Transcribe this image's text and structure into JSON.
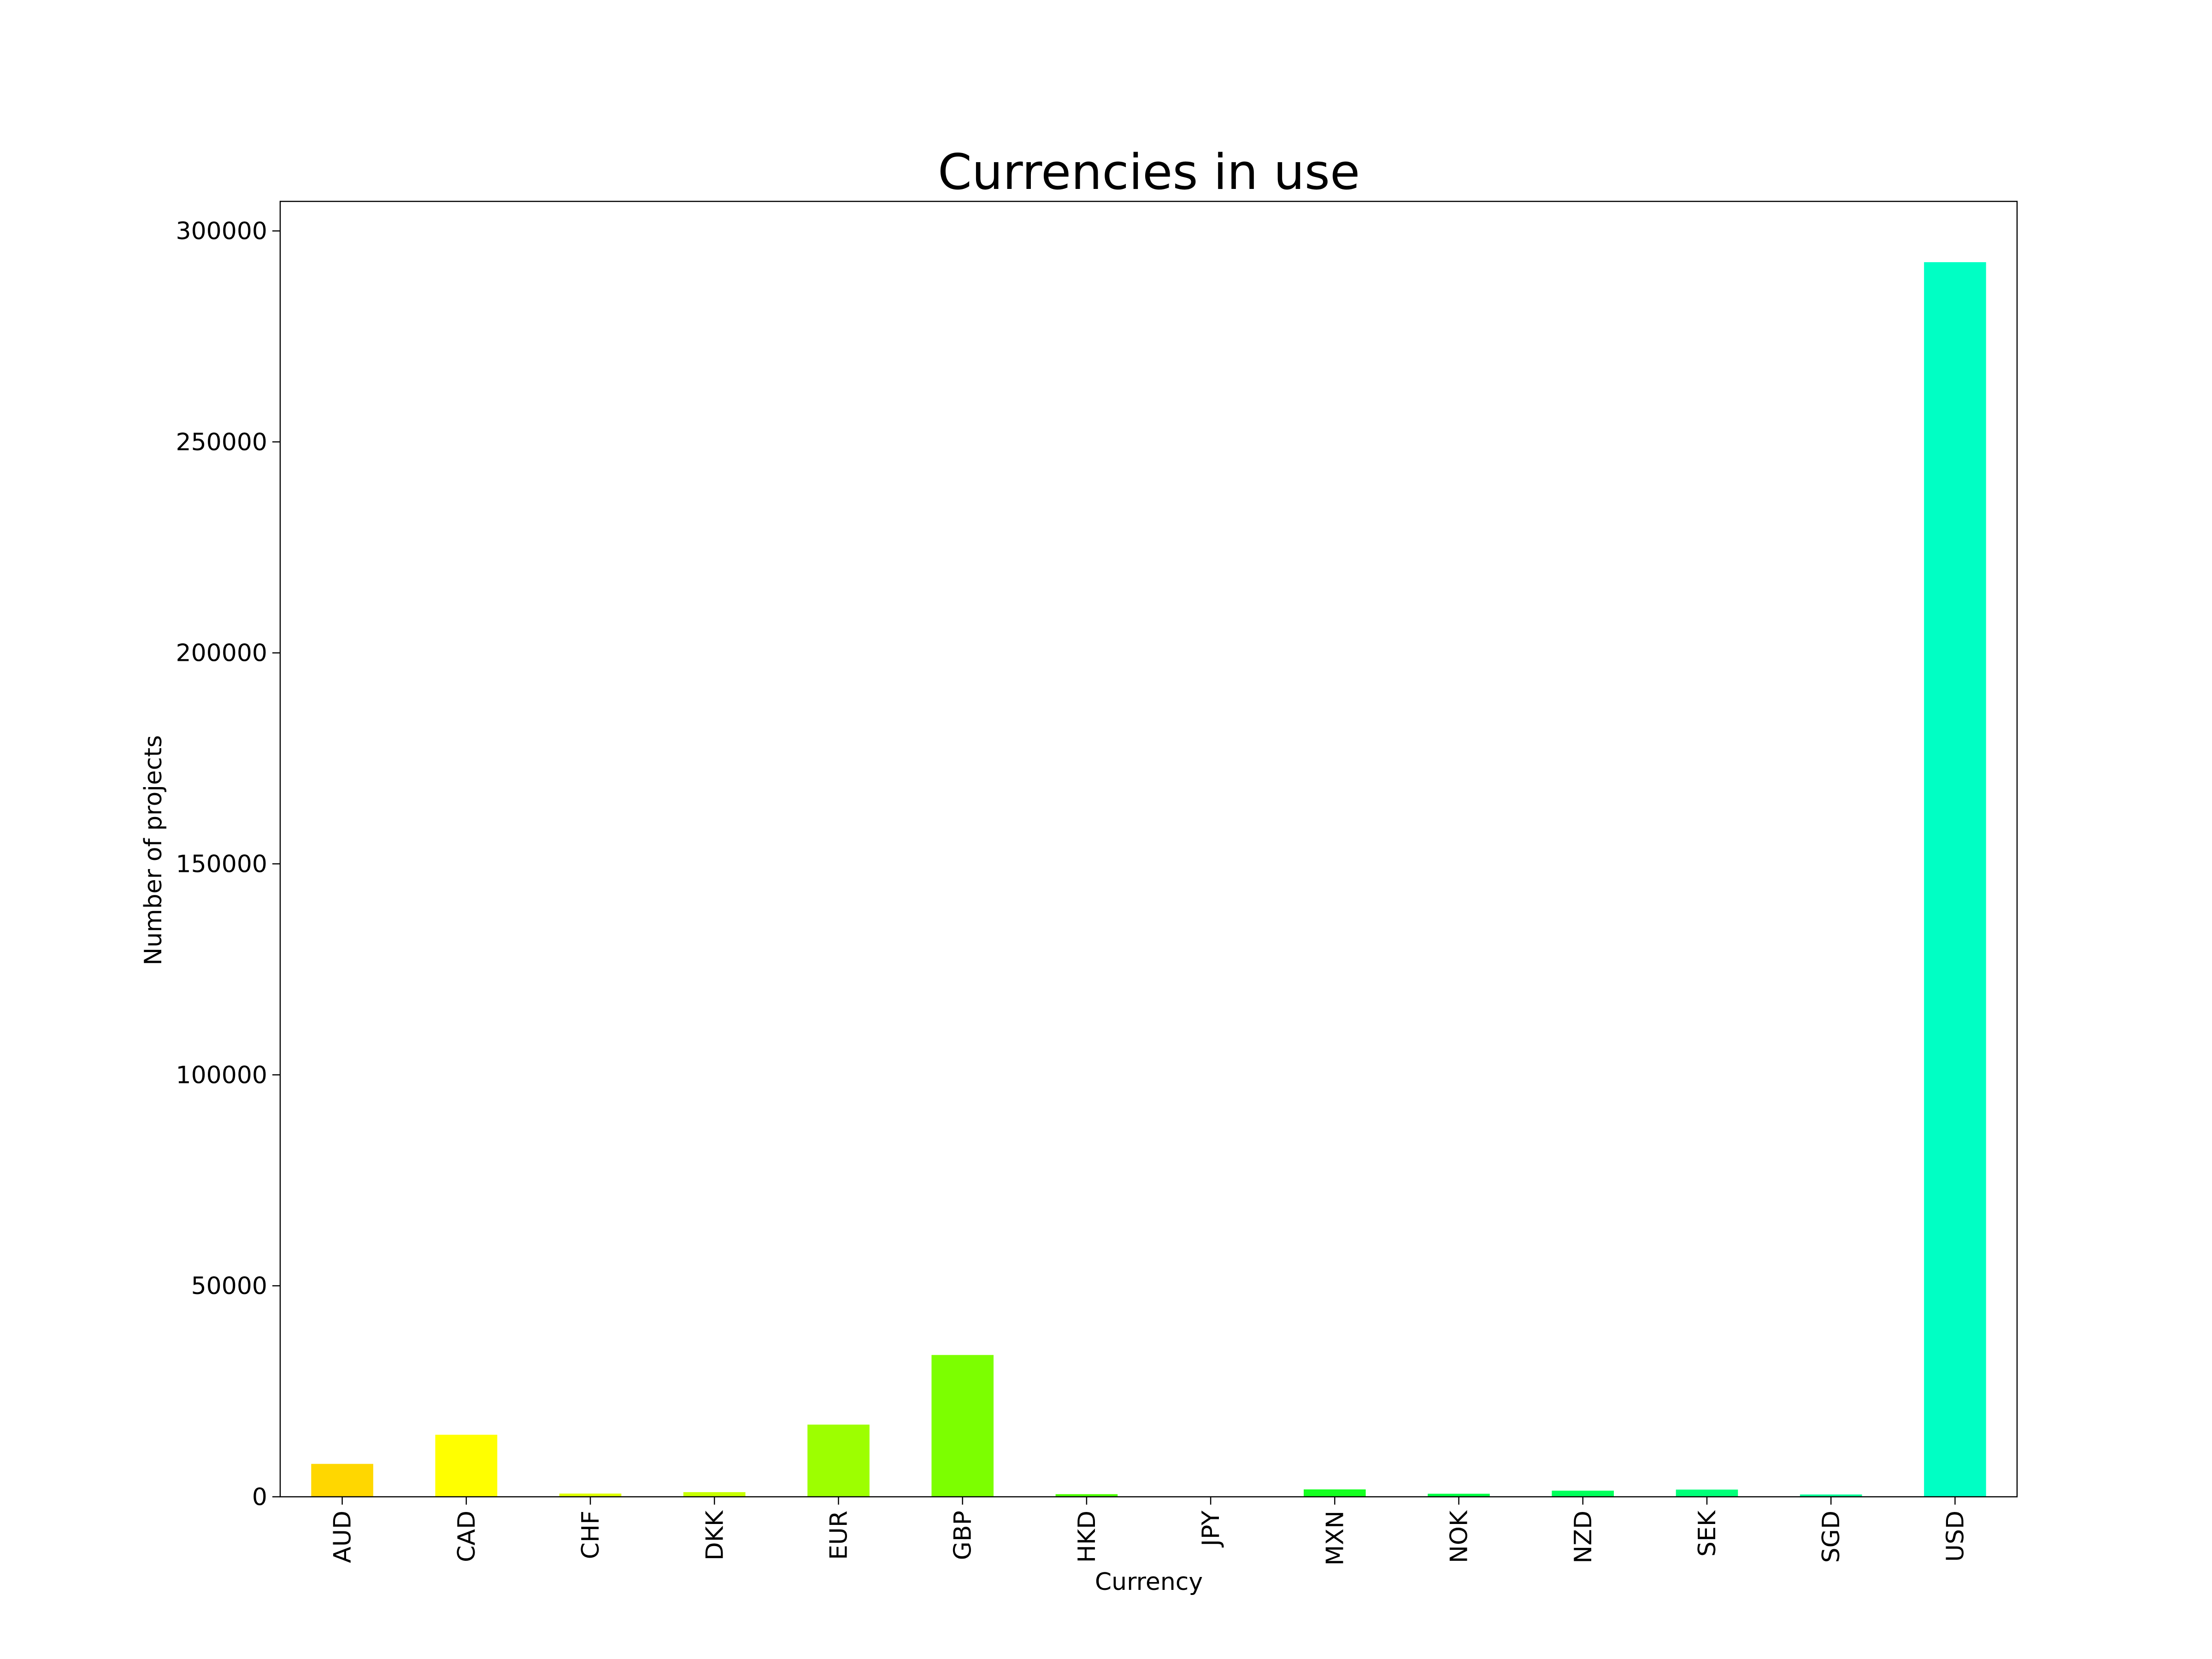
{
  "chart_data": {
    "type": "bar",
    "title": "Currencies in use",
    "xlabel": "Currency",
    "ylabel": "Number of projects",
    "categories": [
      "AUD",
      "CAD",
      "CHF",
      "DKK",
      "EUR",
      "GBP",
      "HKD",
      "JPY",
      "MXN",
      "NOK",
      "NZD",
      "SEK",
      "SGD",
      "USD"
    ],
    "values": [
      7800,
      14700,
      760,
      1100,
      17100,
      33600,
      620,
      40,
      1750,
      720,
      1450,
      1700,
      550,
      292600
    ],
    "colors": [
      "#ffd700",
      "#ffff00",
      "#dfff00",
      "#c8ff00",
      "#9dff00",
      "#7cff00",
      "#4eff00",
      "#2aff00",
      "#14ff20",
      "#00ff44",
      "#00ff5a",
      "#00ff78",
      "#00ff9a",
      "#00ffc4"
    ],
    "ylim": [
      0,
      307000
    ],
    "yticks": [
      0,
      50000,
      100000,
      150000,
      200000,
      250000,
      300000
    ],
    "ytick_labels": [
      "0",
      "50000",
      "100000",
      "150000",
      "200000",
      "250000",
      "300000"
    ],
    "grid": false,
    "legend": "none"
  }
}
